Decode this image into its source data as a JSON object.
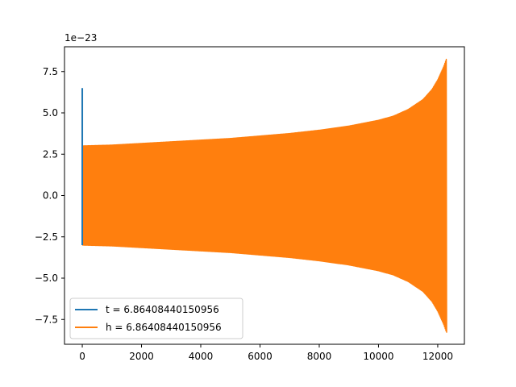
{
  "chart_data": {
    "type": "line",
    "title": "",
    "xlabel": "",
    "ylabel": "",
    "offset_text": "1e−23",
    "xlim": [
      -600,
      12900
    ],
    "ylim": [
      -9.0,
      9.0
    ],
    "xticks": [
      0,
      2000,
      4000,
      6000,
      8000,
      10000,
      12000
    ],
    "xtick_labels": [
      "0",
      "2000",
      "4000",
      "6000",
      "8000",
      "10000",
      "12000"
    ],
    "yticks": [
      -7.5,
      -5.0,
      -2.5,
      0.0,
      2.5,
      5.0,
      7.5
    ],
    "ytick_labels": [
      "−7.5",
      "−5.0",
      "−2.5",
      "0.0",
      "2.5",
      "5.0",
      "7.5"
    ],
    "grid": false,
    "legend_position": "lower-left",
    "series": [
      {
        "name": "t = 6.86408440150956",
        "color": "#1f77b4",
        "style": "spike",
        "x": [
          0,
          0,
          0,
          0,
          0
        ],
        "y": [
          1.5,
          6.5,
          3.0,
          -3.0,
          0.0
        ]
      },
      {
        "name": "h = 6.86408440150956",
        "color": "#ff7f0e",
        "style": "oscillation-envelope",
        "x": [
          0,
          1000,
          2000,
          3000,
          4000,
          5000,
          6000,
          7000,
          8000,
          9000,
          10000,
          10500,
          11000,
          11500,
          11800,
          12000,
          12200,
          12300
        ],
        "y_upper": [
          3.0,
          3.05,
          3.15,
          3.25,
          3.35,
          3.45,
          3.6,
          3.75,
          3.95,
          4.2,
          4.55,
          4.8,
          5.2,
          5.8,
          6.4,
          7.0,
          7.8,
          8.3
        ],
        "y_lower": [
          -3.0,
          -3.05,
          -3.15,
          -3.25,
          -3.35,
          -3.45,
          -3.6,
          -3.75,
          -3.95,
          -4.2,
          -4.55,
          -4.8,
          -5.2,
          -5.8,
          -6.4,
          -7.0,
          -7.8,
          -8.3
        ]
      }
    ]
  }
}
